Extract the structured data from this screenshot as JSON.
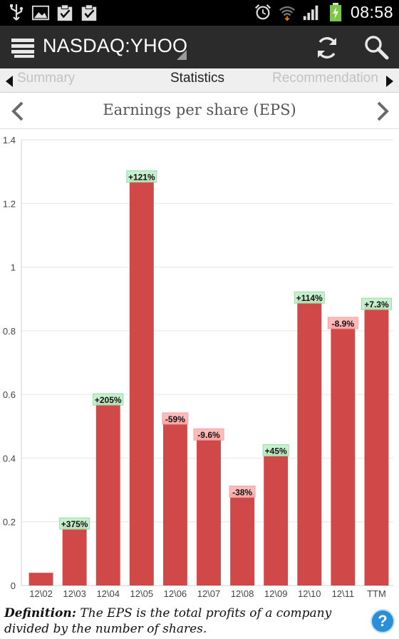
{
  "status_bar": {
    "time": "08:58",
    "icons_left": [
      "usb-icon",
      "image-icon",
      "check-clipboard-icon",
      "check-clipboard-icon"
    ],
    "icons_right": [
      "alarm-icon",
      "wifi-icon",
      "signal-icon",
      "battery-charging-icon"
    ]
  },
  "action_bar": {
    "title": "NASDAQ:YHOO",
    "icons": [
      "menu-icon",
      "refresh-icon",
      "search-icon"
    ]
  },
  "tabs": {
    "prev": "Summary",
    "current": "Statistics",
    "next": "Recommendation"
  },
  "metric": {
    "title": "Earnings per share (EPS)"
  },
  "chart_data": {
    "type": "bar",
    "categories": [
      "12\\02",
      "12\\03",
      "12\\04",
      "12\\05",
      "12\\06",
      "12\\07",
      "12\\08",
      "12\\09",
      "12\\10",
      "12\\11",
      "TTM"
    ],
    "values": [
      0.04,
      0.19,
      0.58,
      1.28,
      0.52,
      0.47,
      0.29,
      0.42,
      0.9,
      0.82,
      0.88
    ],
    "change_labels": [
      "",
      "+375%",
      "+205%",
      "+121%",
      "-59%",
      "-9.6%",
      "-38%",
      "+45%",
      "+114%",
      "-8.9%",
      "+7.3%"
    ],
    "ylim": [
      0,
      1.4
    ],
    "yticks": [
      "0",
      "0.2",
      "0.4",
      "0.6",
      "0.8",
      "1",
      "1.2",
      "1.4"
    ],
    "grid": true,
    "colors": {
      "bar": "#d04848",
      "positive_badge": "#bff0c8",
      "negative_badge": "#ffb3b3"
    }
  },
  "footer": {
    "definition_label": "Definition:",
    "definition_text": " The EPS is the total profits of a company divided by the number of shares.",
    "help_symbol": "?"
  }
}
